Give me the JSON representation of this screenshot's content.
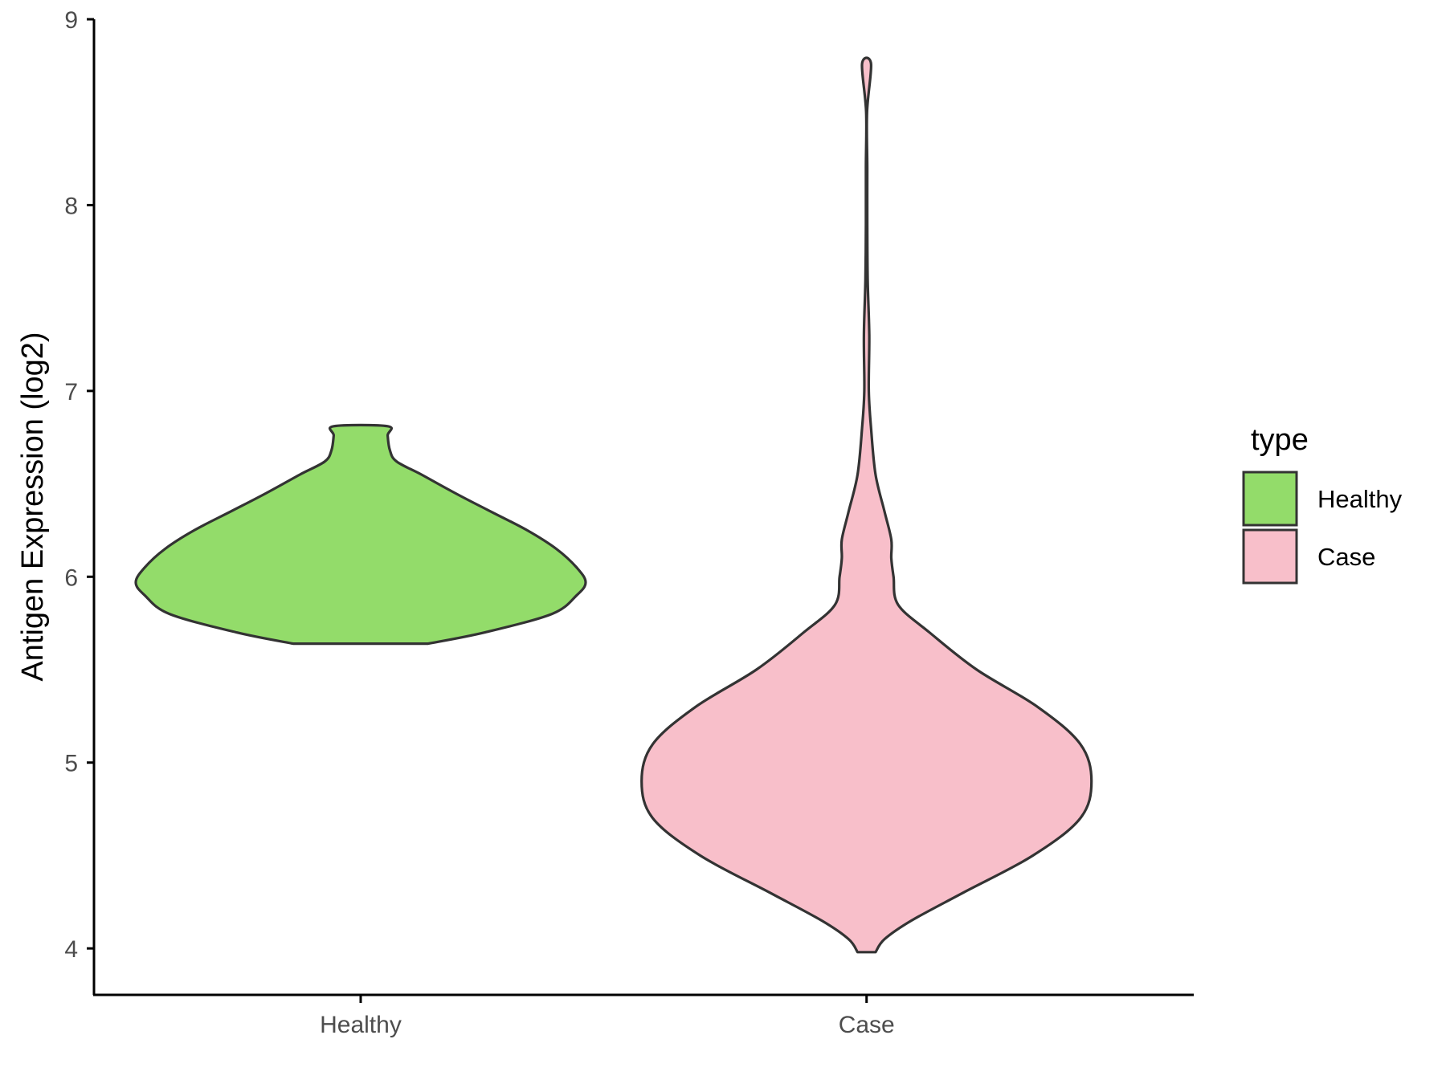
{
  "chart_data": {
    "type": "violin",
    "title": "",
    "xlabel": "",
    "ylabel": "Antigen Expression (log2)",
    "ylim": [
      3.75,
      9.0
    ],
    "yticks": [
      4,
      5,
      6,
      7,
      8,
      9
    ],
    "categories": [
      "Healthy",
      "Case"
    ],
    "legend": {
      "title": "type",
      "position": "right",
      "entries": [
        {
          "label": "Healthy",
          "color": "#93DC6A"
        },
        {
          "label": "Case",
          "color": "#F8BFCA"
        }
      ]
    },
    "series": [
      {
        "category": "Healthy",
        "color": "#93DC6A",
        "min": 5.64,
        "max": 6.81,
        "density": [
          [
            5.64,
            0.3
          ],
          [
            5.7,
            0.55
          ],
          [
            5.8,
            0.85
          ],
          [
            5.9,
            0.96
          ],
          [
            5.97,
            1.0
          ],
          [
            6.05,
            0.96
          ],
          [
            6.15,
            0.87
          ],
          [
            6.25,
            0.74
          ],
          [
            6.35,
            0.58
          ],
          [
            6.45,
            0.42
          ],
          [
            6.55,
            0.27
          ],
          [
            6.62,
            0.16
          ],
          [
            6.68,
            0.13
          ],
          [
            6.76,
            0.12
          ],
          [
            6.81,
            0.12
          ]
        ]
      },
      {
        "category": "Case",
        "color": "#F8BFCA",
        "min": 3.98,
        "max": 8.76,
        "density": [
          [
            3.98,
            0.04
          ],
          [
            4.05,
            0.08
          ],
          [
            4.15,
            0.2
          ],
          [
            4.3,
            0.43
          ],
          [
            4.5,
            0.74
          ],
          [
            4.7,
            0.95
          ],
          [
            4.9,
            1.0
          ],
          [
            5.1,
            0.95
          ],
          [
            5.3,
            0.76
          ],
          [
            5.5,
            0.49
          ],
          [
            5.7,
            0.28
          ],
          [
            5.85,
            0.14
          ],
          [
            6.0,
            0.12
          ],
          [
            6.1,
            0.11
          ],
          [
            6.2,
            0.11
          ],
          [
            6.35,
            0.08
          ],
          [
            6.55,
            0.04
          ],
          [
            6.8,
            0.02
          ],
          [
            7.0,
            0.01
          ],
          [
            7.3,
            0.012
          ],
          [
            7.6,
            0.005
          ],
          [
            7.9,
            0.003
          ],
          [
            8.2,
            0.003
          ],
          [
            8.5,
            0.002
          ],
          [
            8.76,
            0.02
          ]
        ]
      }
    ]
  }
}
